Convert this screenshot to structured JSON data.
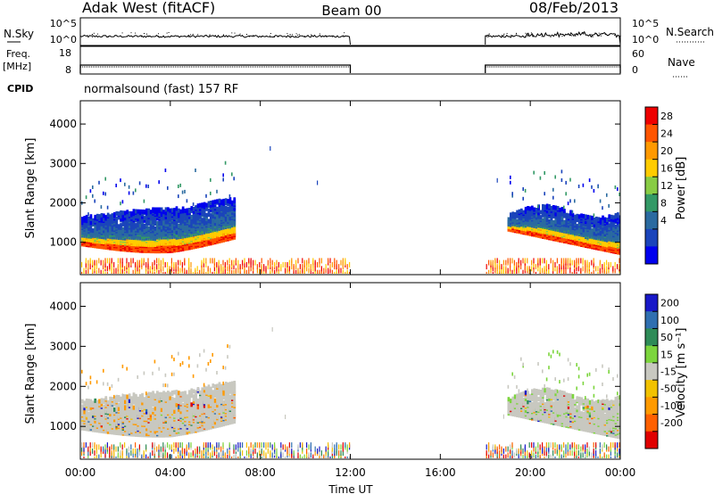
{
  "header": {
    "station": "Adak West (fitACF)",
    "beam": "Beam 00",
    "date": "08/Feb/2013"
  },
  "panels": {
    "nsky": {
      "left_label": "N.Sky",
      "right_label": "N.Search",
      "left_ticks": [
        "10^5",
        "10^0"
      ],
      "right_ticks": [
        "10^5",
        "10^0"
      ]
    },
    "freq": {
      "left_label_1": "Freq.",
      "left_label_2": "[MHz]",
      "right_label": "Nave",
      "left_ticks": [
        "18",
        "8"
      ],
      "right_ticks": [
        "60",
        "0"
      ]
    },
    "cpid": {
      "label": "CPID",
      "program": "normalsound (fast) 157 RF"
    }
  },
  "colorbars": {
    "power": {
      "title": "Power [dB]",
      "ticks": [
        "28",
        "24",
        "20",
        "16",
        "12",
        "8",
        "4"
      ],
      "colors": [
        "#ee0000",
        "#ff5500",
        "#ff9900",
        "#ffcc00",
        "#88cc44",
        "#339966",
        "#2a6aa0",
        "#1a44bb",
        "#0000ee"
      ]
    },
    "velocity": {
      "title": "Velocity [m s⁻¹]",
      "ticks": [
        "200",
        "100",
        "50",
        "15",
        "-15",
        "-50",
        "-100",
        "-200"
      ],
      "colors": [
        "#1818c8",
        "#2f6fb0",
        "#2e8b57",
        "#7cd53d",
        "#c8c8c0",
        "#f2c200",
        "#ff9a00",
        "#ff6000",
        "#e00000"
      ]
    }
  },
  "chart_data": [
    {
      "type": "heatmap",
      "name": "power",
      "xlabel": "",
      "ylabel": "Slant Range [km]",
      "xlim": [
        0,
        24
      ],
      "ylim": [
        180,
        4590
      ],
      "yticks": [
        "4000",
        "3000",
        "2000",
        "1000"
      ],
      "ytick_values": [
        4000,
        3000,
        2000,
        1000
      ],
      "coverage": [
        [
          0,
          12
        ],
        [
          18,
          24
        ]
      ],
      "series": [
        {
          "layer": "near-range clutter",
          "range_km": [
            200,
            600
          ],
          "value_dB": 22
        },
        {
          "layer": "E/F echo band (00:00-06:50)",
          "range_km": [
            820,
            2000
          ],
          "peak_dB": 28
        },
        {
          "layer": "E/F echo band (19:00-24:00)",
          "range_km": [
            700,
            2000
          ],
          "peak_dB": 26
        },
        {
          "layer": "scattered high-range echoes",
          "range_km": [
            2000,
            3500
          ],
          "value_dB": 6
        }
      ]
    },
    {
      "type": "heatmap",
      "name": "velocity",
      "xlabel": "Time UT",
      "ylabel": "Slant Range [km]",
      "xlim": [
        0,
        24
      ],
      "ylim": [
        180,
        4590
      ],
      "xticks": [
        "00:00",
        "04:00",
        "08:00",
        "12:00",
        "16:00",
        "20:00",
        "00:00"
      ],
      "xtick_values": [
        0,
        4,
        8,
        12,
        16,
        20,
        24
      ],
      "yticks": [
        "4000",
        "3000",
        "2000",
        "1000"
      ],
      "ytick_values": [
        4000,
        3000,
        2000,
        1000
      ],
      "coverage": [
        [
          0,
          12
        ],
        [
          18,
          24
        ]
      ],
      "series": [
        {
          "layer": "main echo region",
          "range_km": [
            820,
            2000
          ],
          "velocity_mps": 0
        },
        {
          "layer": "edge echoes (04:00-06:50)",
          "range_km": [
            1700,
            2700
          ],
          "velocity_mps": -60
        },
        {
          "layer": "edge echoes (20:00-24:00)",
          "range_km": [
            1200,
            2000
          ],
          "velocity_mps": 40
        }
      ]
    }
  ]
}
